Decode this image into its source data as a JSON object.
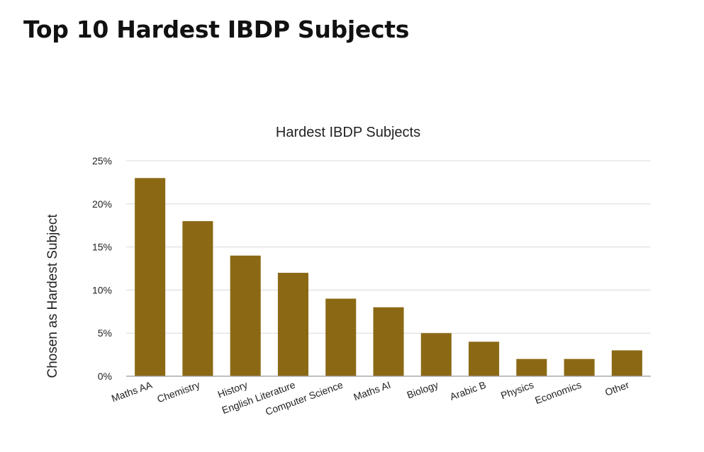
{
  "page": {
    "title": "Top 10 Hardest IBDP Subjects"
  },
  "chart_data": {
    "type": "bar",
    "title": "Hardest IBDP Subjects",
    "xlabel": "",
    "ylabel": "Chosen as Hardest Subject",
    "categories": [
      "Maths AA",
      "Chemistry",
      "History",
      "English Literature",
      "Computer Science",
      "Maths AI",
      "Biology",
      "Arabic B",
      "Physics",
      "Economics",
      "Other"
    ],
    "values": [
      23,
      18,
      14,
      12,
      9,
      8,
      5,
      4,
      2,
      2,
      3
    ],
    "ylim": [
      0,
      25
    ],
    "yticks": [
      "0%",
      "5%",
      "10%",
      "15%",
      "20%",
      "25%"
    ],
    "grid": true,
    "legend": "none",
    "colors": {
      "bar": "#8B6914",
      "grid": "#d9d9d9",
      "axis": "#9a9a9a"
    }
  }
}
